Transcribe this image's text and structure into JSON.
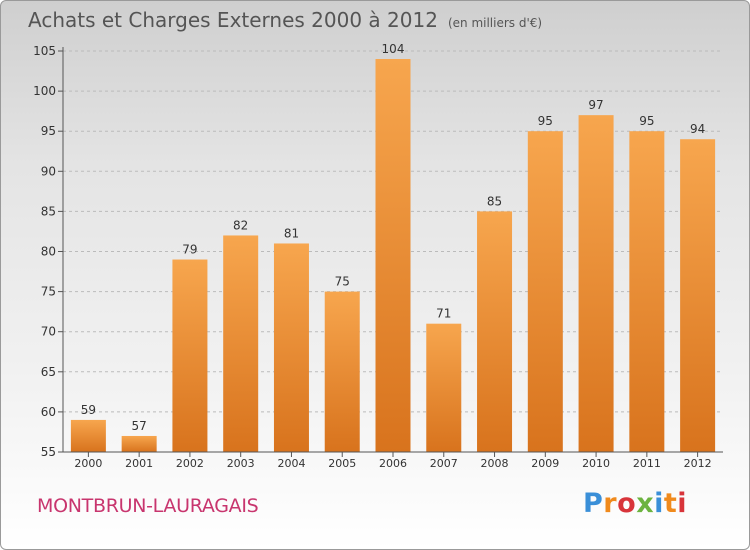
{
  "header": {
    "title": "Achats et Charges Externes 2000 à 2012",
    "unit": "(en milliers d'€)"
  },
  "footer": {
    "commune": "MONTBRUN-LAURAGAIS",
    "logo": "Proxiti"
  },
  "colors": {
    "bar_top": "#f7a64e",
    "bar_bottom": "#d8731d",
    "axis": "#555555",
    "grid": "#bbbbbb"
  },
  "chart_data": {
    "type": "bar",
    "title": "Achats et Charges Externes 2000 à 2012",
    "unit": "(en milliers d'€)",
    "xlabel": "",
    "ylabel": "",
    "categories": [
      "2000",
      "2001",
      "2002",
      "2003",
      "2004",
      "2005",
      "2006",
      "2007",
      "2008",
      "2009",
      "2010",
      "2011",
      "2012"
    ],
    "values": [
      59,
      57,
      79,
      82,
      81,
      75,
      104,
      71,
      85,
      95,
      97,
      95,
      94
    ],
    "ylim": [
      55,
      105
    ],
    "yticks": [
      55,
      60,
      65,
      70,
      75,
      80,
      85,
      90,
      95,
      100,
      105
    ],
    "grid": "horizontal",
    "data_labels": true
  }
}
